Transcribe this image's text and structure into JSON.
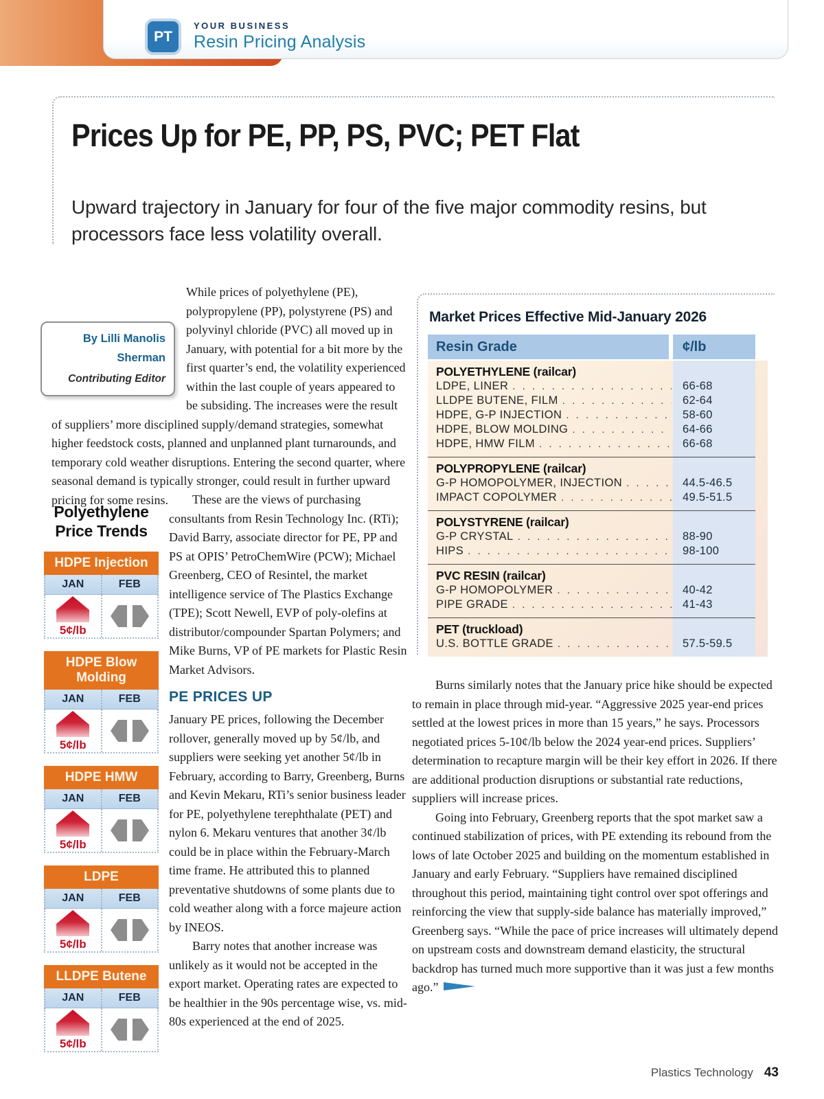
{
  "header": {
    "logo": "PT",
    "kicker": "YOUR BUSINESS",
    "section": "Resin Pricing Analysis"
  },
  "article": {
    "title": "Prices Up for PE, PP, PS, PVC; PET Flat",
    "subtitle": "Upward trajectory in January for four of the five major commodity resins, but processors face less volatility overall.",
    "byline": {
      "by": "By Lilli Manolis Sherman",
      "role": "Contributing Editor"
    },
    "intro_p1": "While prices of polyethylene (PE), polypropylene (PP), polystyrene (PS) and polyvinyl chloride (PVC) all moved up in January, with potential for a bit more by the first quarter’s end, the volatility experienced within the last couple of years appeared to be subsiding. The increases were the result of suppliers’ more disciplined supply/demand strategies, somewhat higher feedstock costs, planned and unplanned plant turnarounds, and temporary cold weather disruptions. Entering the second quarter, where seasonal demand is typically stronger, could result in further upward pricing for some resins.",
    "col_mid": {
      "p1": "These are the views of purchasing consultants from Resin Technology Inc. (RTi); David Barry, associate director for PE, PP and PS at OPIS’ PetroChemWire (PCW); Michael Greenberg, CEO of Resintel, the market intelligence service of The Plastics Exchange (TPE); Scott Newell, EVP of poly-olefins at distributor/compounder Spartan Polymers; and Mike Burns, VP of PE markets for Plastic Resin Market Advisors.",
      "heading": "PE PRICES UP",
      "p2": "January PE prices, following the December rollover, generally moved up by 5¢/lb, and suppliers were seeking yet another 5¢/lb in February, according to Barry, Greenberg, Burns and Kevin Mekaru, RTi’s senior business leader for PE, polyethylene terephthalate (PET) and nylon 6. Mekaru ventures that another 3¢/lb could be in place within the February-March time frame. He attributed this to planned preventative shutdowns of some plants due to cold weather along with a force majeure action by INEOS.",
      "p3": "Barry notes that another increase was unlikely as it would not be accepted in the export market. Operating rates are expected to be healthier in the 90s percentage wise, vs. mid-80s experienced at the end of 2025."
    },
    "col_right": {
      "p1": "Burns similarly notes that the January price hike should be expected to remain in place through mid-year. “Aggressive 2025 year-end prices settled at the lowest prices in more than 15 years,” he says. Processors negotiated prices 5-10¢/lb below the 2024 year-end prices. Suppliers’ determination to recapture margin will be their key effort in 2026. If there are additional production disruptions or substantial rate reductions, suppliers will increase prices.",
      "p2": "Going into February, Greenberg reports that the spot market saw a continued stabilization of prices, with PE extending its rebound from the lows of late October 2025 and building on the momentum established in January and early February. “Suppliers have remained disciplined throughout this period, maintaining tight control over spot offerings and reinforcing the view that supply-side balance has materially improved,” Greenberg says. “While the pace of price increases will ultimately depend on upstream costs and downstream demand elasticity, the structural backdrop has turned much more supportive than it was just a few months ago.”"
    }
  },
  "trends": {
    "heading": "Polyethylene Price Trends",
    "months": [
      "JAN",
      "FEB"
    ],
    "boxes": [
      {
        "label": "HDPE Injection",
        "jan_change": "5¢/lb",
        "jan_dir": "up",
        "feb_dir": "flat"
      },
      {
        "label": "HDPE Blow Molding",
        "jan_change": "5¢/lb",
        "jan_dir": "up",
        "feb_dir": "flat"
      },
      {
        "label": "HDPE HMW",
        "jan_change": "5¢/lb",
        "jan_dir": "up",
        "feb_dir": "flat"
      },
      {
        "label": "LDPE",
        "jan_change": "5¢/lb",
        "jan_dir": "up",
        "feb_dir": "flat"
      },
      {
        "label": "LLDPE Butene",
        "jan_change": "5¢/lb",
        "jan_dir": "up",
        "feb_dir": "flat"
      }
    ]
  },
  "price_table": {
    "title": "Market Prices Effective Mid-January 2026",
    "columns": [
      "Resin Grade",
      "¢/lb"
    ],
    "sections": [
      {
        "header": "POLYETHYLENE (railcar)",
        "rows": [
          [
            "LDPE, LINER",
            "66-68"
          ],
          [
            "LLDPE BUTENE, FILM",
            "62-64"
          ],
          [
            "HDPE, G-P INJECTION",
            "58-60"
          ],
          [
            "HDPE, BLOW MOLDING",
            "64-66"
          ],
          [
            "HDPE, HMW FILM",
            "66-68"
          ]
        ]
      },
      {
        "header": "POLYPROPYLENE (railcar)",
        "rows": [
          [
            "G-P HOMOPOLYMER, INJECTION",
            "44.5-46.5"
          ],
          [
            "IMPACT COPOLYMER",
            "49.5-51.5"
          ]
        ]
      },
      {
        "header": "POLYSTYRENE (railcar)",
        "rows": [
          [
            "G-P CRYSTAL",
            "88-90"
          ],
          [
            "HIPS",
            "98-100"
          ]
        ]
      },
      {
        "header": "PVC RESIN (railcar)",
        "rows": [
          [
            "G-P HOMOPOLYMER",
            "40-42"
          ],
          [
            "PIPE GRADE",
            "41-43"
          ]
        ]
      },
      {
        "header": "PET (truckload)",
        "rows": [
          [
            "U.S. BOTTLE GRADE",
            "57.5-59.5"
          ]
        ]
      }
    ]
  },
  "footer": {
    "magazine": "Plastics Technology",
    "page": "43"
  },
  "colors": {
    "orange": "#e4731f",
    "navy": "#14375e",
    "link_blue": "#1f7dab",
    "heading_blue": "#1a5c80",
    "red": "#c01227",
    "table_header_blue": "#abc9e6",
    "table_blue_col": "#dbe5f3",
    "table_cream": "#fdf3e4",
    "gray_arrow": "#8d8d8d"
  }
}
